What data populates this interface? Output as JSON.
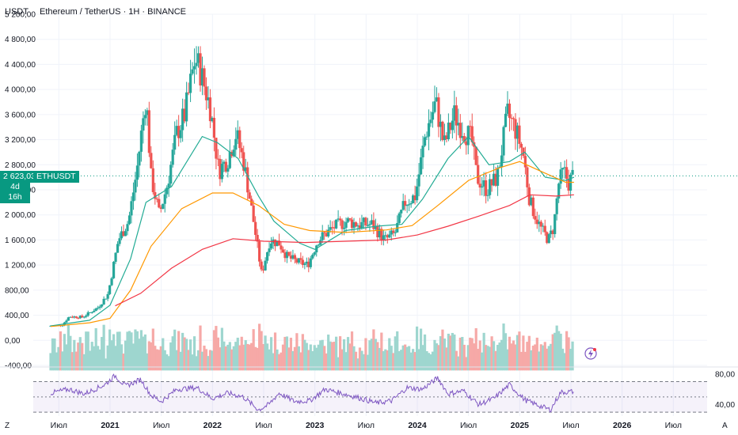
{
  "header": {
    "quote_label": "USDT",
    "title": "Ethereum / TetherUS · 1H · BINANCE"
  },
  "price_tag": {
    "value": "2 623,03",
    "countdown": "4d 16h",
    "symbol": "ETHUSDT"
  },
  "controls": {
    "z_label": "Z",
    "a_label": "A"
  },
  "colors": {
    "up": "#26a69a",
    "down": "#ef5350",
    "vol_up": "#9ed6cf",
    "vol_down": "#f6a9a7",
    "ma_short": "#22ab94",
    "ma_mid": "#ff9800",
    "ma_long": "#f23645",
    "rsi": "#7e57c2",
    "grid": "#f0f3fa",
    "price_line": "#089981"
  },
  "chart_data": [
    {
      "type": "candlestick",
      "title": "Ethereum / TetherUS · 1H · BINANCE",
      "ylabel": "USDT",
      "ylim": [
        -400,
        5200
      ],
      "y_ticks": [
        "-400,00",
        "0,00",
        "400,00",
        "800,00",
        "1 200,00",
        "1 600,00",
        "2 000,00",
        "2 400,00",
        "2 800,00",
        "3 200,00",
        "3 600,00",
        "4 000,00",
        "4 400,00",
        "4 800,00",
        "5 200,00"
      ],
      "x_ticks": [
        "Июл",
        "2021",
        "Июл",
        "2022",
        "Июл",
        "2023",
        "Июл",
        "2024",
        "Июл",
        "2025",
        "Июл",
        "2026",
        "Июл"
      ],
      "last_price": 2623.03,
      "series_close_path": [
        {
          "t": 2020.42,
          "v": 230
        },
        {
          "t": 2020.55,
          "v": 240
        },
        {
          "t": 2020.62,
          "v": 380
        },
        {
          "t": 2020.75,
          "v": 370
        },
        {
          "t": 2020.9,
          "v": 520
        },
        {
          "t": 2021.0,
          "v": 740
        },
        {
          "t": 2021.1,
          "v": 1600
        },
        {
          "t": 2021.2,
          "v": 1900
        },
        {
          "t": 2021.28,
          "v": 2700
        },
        {
          "t": 2021.37,
          "v": 3900
        },
        {
          "t": 2021.42,
          "v": 2600
        },
        {
          "t": 2021.5,
          "v": 2000
        },
        {
          "t": 2021.58,
          "v": 2500
        },
        {
          "t": 2021.67,
          "v": 3300
        },
        {
          "t": 2021.75,
          "v": 3600
        },
        {
          "t": 2021.85,
          "v": 4500
        },
        {
          "t": 2021.9,
          "v": 4300
        },
        {
          "t": 2022.0,
          "v": 3700
        },
        {
          "t": 2022.08,
          "v": 2700
        },
        {
          "t": 2022.17,
          "v": 2900
        },
        {
          "t": 2022.25,
          "v": 3300
        },
        {
          "t": 2022.33,
          "v": 2800
        },
        {
          "t": 2022.42,
          "v": 1900
        },
        {
          "t": 2022.5,
          "v": 1050
        },
        {
          "t": 2022.58,
          "v": 1600
        },
        {
          "t": 2022.67,
          "v": 1550
        },
        {
          "t": 2022.75,
          "v": 1330
        },
        {
          "t": 2022.85,
          "v": 1250
        },
        {
          "t": 2022.95,
          "v": 1200
        },
        {
          "t": 2023.05,
          "v": 1600
        },
        {
          "t": 2023.2,
          "v": 1800
        },
        {
          "t": 2023.33,
          "v": 1900
        },
        {
          "t": 2023.45,
          "v": 1850
        },
        {
          "t": 2023.58,
          "v": 1850
        },
        {
          "t": 2023.7,
          "v": 1600
        },
        {
          "t": 2023.8,
          "v": 1700
        },
        {
          "t": 2023.9,
          "v": 2200
        },
        {
          "t": 2024.0,
          "v": 2300
        },
        {
          "t": 2024.1,
          "v": 3300
        },
        {
          "t": 2024.2,
          "v": 3800
        },
        {
          "t": 2024.28,
          "v": 3100
        },
        {
          "t": 2024.38,
          "v": 3600
        },
        {
          "t": 2024.45,
          "v": 3400
        },
        {
          "t": 2024.55,
          "v": 3200
        },
        {
          "t": 2024.6,
          "v": 2600
        },
        {
          "t": 2024.7,
          "v": 2400
        },
        {
          "t": 2024.8,
          "v": 2600
        },
        {
          "t": 2024.9,
          "v": 3600
        },
        {
          "t": 2024.97,
          "v": 3400
        },
        {
          "t": 2025.05,
          "v": 3000
        },
        {
          "t": 2025.12,
          "v": 2200
        },
        {
          "t": 2025.22,
          "v": 1800
        },
        {
          "t": 2025.3,
          "v": 1600
        },
        {
          "t": 2025.35,
          "v": 1800
        },
        {
          "t": 2025.4,
          "v": 2500
        },
        {
          "t": 2025.45,
          "v": 2700
        },
        {
          "t": 2025.5,
          "v": 2500
        },
        {
          "t": 2025.53,
          "v": 2623
        }
      ],
      "ma_series": [
        {
          "color_key": "ma_short",
          "points": [
            {
              "t": 2020.42,
              "v": 230
            },
            {
              "t": 2020.8,
              "v": 320
            },
            {
              "t": 2021.0,
              "v": 560
            },
            {
              "t": 2021.2,
              "v": 1300
            },
            {
              "t": 2021.35,
              "v": 2200
            },
            {
              "t": 2021.6,
              "v": 2450
            },
            {
              "t": 2021.9,
              "v": 3250
            },
            {
              "t": 2022.05,
              "v": 3150
            },
            {
              "t": 2022.25,
              "v": 2900
            },
            {
              "t": 2022.45,
              "v": 2300
            },
            {
              "t": 2022.6,
              "v": 1900
            },
            {
              "t": 2022.85,
              "v": 1550
            },
            {
              "t": 2023.0,
              "v": 1450
            },
            {
              "t": 2023.3,
              "v": 1750
            },
            {
              "t": 2023.6,
              "v": 1820
            },
            {
              "t": 2023.85,
              "v": 1850
            },
            {
              "t": 2024.05,
              "v": 2250
            },
            {
              "t": 2024.3,
              "v": 2900
            },
            {
              "t": 2024.5,
              "v": 3250
            },
            {
              "t": 2024.7,
              "v": 2800
            },
            {
              "t": 2024.9,
              "v": 2850
            },
            {
              "t": 2025.05,
              "v": 3000
            },
            {
              "t": 2025.25,
              "v": 2600
            },
            {
              "t": 2025.45,
              "v": 2550
            },
            {
              "t": 2025.53,
              "v": 2600
            }
          ]
        },
        {
          "color_key": "ma_mid",
          "points": [
            {
              "t": 2020.42,
              "v": 220
            },
            {
              "t": 2020.8,
              "v": 280
            },
            {
              "t": 2021.0,
              "v": 350
            },
            {
              "t": 2021.2,
              "v": 800
            },
            {
              "t": 2021.4,
              "v": 1500
            },
            {
              "t": 2021.7,
              "v": 2100
            },
            {
              "t": 2022.0,
              "v": 2350
            },
            {
              "t": 2022.2,
              "v": 2350
            },
            {
              "t": 2022.45,
              "v": 2150
            },
            {
              "t": 2022.7,
              "v": 1850
            },
            {
              "t": 2022.95,
              "v": 1750
            },
            {
              "t": 2023.3,
              "v": 1720
            },
            {
              "t": 2023.7,
              "v": 1760
            },
            {
              "t": 2023.95,
              "v": 1830
            },
            {
              "t": 2024.2,
              "v": 2150
            },
            {
              "t": 2024.5,
              "v": 2550
            },
            {
              "t": 2024.8,
              "v": 2750
            },
            {
              "t": 2025.0,
              "v": 2850
            },
            {
              "t": 2025.2,
              "v": 2700
            },
            {
              "t": 2025.45,
              "v": 2520
            },
            {
              "t": 2025.53,
              "v": 2520
            }
          ]
        },
        {
          "color_key": "ma_long",
          "points": [
            {
              "t": 2021.05,
              "v": 550
            },
            {
              "t": 2021.3,
              "v": 750
            },
            {
              "t": 2021.6,
              "v": 1150
            },
            {
              "t": 2021.9,
              "v": 1450
            },
            {
              "t": 2022.2,
              "v": 1620
            },
            {
              "t": 2022.5,
              "v": 1580
            },
            {
              "t": 2022.9,
              "v": 1560
            },
            {
              "t": 2023.3,
              "v": 1580
            },
            {
              "t": 2023.7,
              "v": 1600
            },
            {
              "t": 2024.0,
              "v": 1680
            },
            {
              "t": 2024.3,
              "v": 1820
            },
            {
              "t": 2024.6,
              "v": 1980
            },
            {
              "t": 2024.9,
              "v": 2150
            },
            {
              "t": 2025.1,
              "v": 2320
            },
            {
              "t": 2025.35,
              "v": 2300
            },
            {
              "t": 2025.53,
              "v": 2320
            }
          ]
        }
      ]
    },
    {
      "type": "line",
      "title": "",
      "y_ticks": [
        "40,00",
        "80,00"
      ],
      "ylim": [
        25,
        85
      ],
      "bands": [
        30,
        50,
        70
      ],
      "rsi_points": [
        {
          "t": 2020.42,
          "v": 55
        },
        {
          "t": 2020.6,
          "v": 60
        },
        {
          "t": 2020.75,
          "v": 54
        },
        {
          "t": 2020.95,
          "v": 66
        },
        {
          "t": 2021.05,
          "v": 78
        },
        {
          "t": 2021.15,
          "v": 64
        },
        {
          "t": 2021.3,
          "v": 73
        },
        {
          "t": 2021.4,
          "v": 52
        },
        {
          "t": 2021.5,
          "v": 44
        },
        {
          "t": 2021.65,
          "v": 60
        },
        {
          "t": 2021.85,
          "v": 62
        },
        {
          "t": 2022.0,
          "v": 48
        },
        {
          "t": 2022.15,
          "v": 55
        },
        {
          "t": 2022.3,
          "v": 50
        },
        {
          "t": 2022.45,
          "v": 33
        },
        {
          "t": 2022.55,
          "v": 40
        },
        {
          "t": 2022.65,
          "v": 55
        },
        {
          "t": 2022.8,
          "v": 44
        },
        {
          "t": 2022.95,
          "v": 45
        },
        {
          "t": 2023.1,
          "v": 60
        },
        {
          "t": 2023.25,
          "v": 55
        },
        {
          "t": 2023.4,
          "v": 50
        },
        {
          "t": 2023.6,
          "v": 42
        },
        {
          "t": 2023.75,
          "v": 45
        },
        {
          "t": 2023.9,
          "v": 62
        },
        {
          "t": 2024.05,
          "v": 60
        },
        {
          "t": 2024.2,
          "v": 75
        },
        {
          "t": 2024.3,
          "v": 54
        },
        {
          "t": 2024.45,
          "v": 58
        },
        {
          "t": 2024.6,
          "v": 40
        },
        {
          "t": 2024.75,
          "v": 48
        },
        {
          "t": 2024.9,
          "v": 66
        },
        {
          "t": 2025.05,
          "v": 46
        },
        {
          "t": 2025.2,
          "v": 38
        },
        {
          "t": 2025.3,
          "v": 33
        },
        {
          "t": 2025.4,
          "v": 56
        },
        {
          "t": 2025.53,
          "v": 57
        }
      ]
    }
  ]
}
